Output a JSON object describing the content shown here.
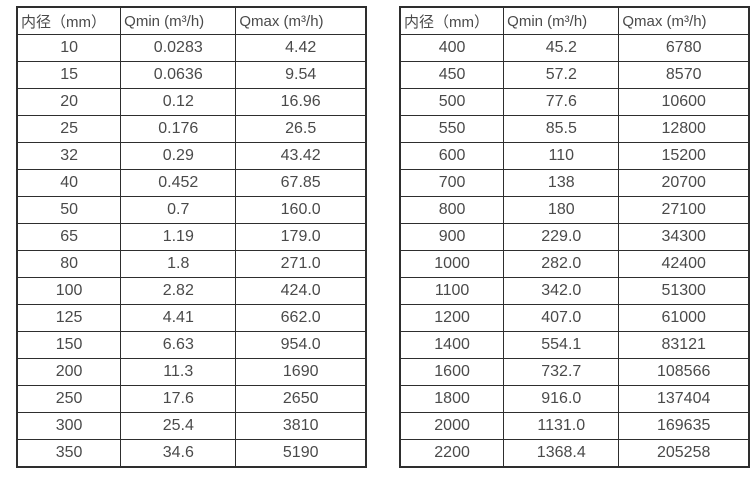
{
  "colors": {
    "border": "#2e2e2e",
    "text": "#4a4a4a",
    "background": "#ffffff"
  },
  "tables": [
    {
      "name": "flow-rate-table-small-diameters",
      "columns": [
        "内径（mm）",
        "Qmin (m³/h)",
        "Qmax (m³/h)"
      ],
      "rows": [
        [
          "10",
          "0.0283",
          "4.42"
        ],
        [
          "15",
          "0.0636",
          "9.54"
        ],
        [
          "20",
          "0.12",
          "16.96"
        ],
        [
          "25",
          "0.176",
          "26.5"
        ],
        [
          "32",
          "0.29",
          "43.42"
        ],
        [
          "40",
          "0.452",
          "67.85"
        ],
        [
          "50",
          "0.7",
          "160.0"
        ],
        [
          "65",
          "1.19",
          "179.0"
        ],
        [
          "80",
          "1.8",
          "271.0"
        ],
        [
          "100",
          "2.82",
          "424.0"
        ],
        [
          "125",
          "4.41",
          "662.0"
        ],
        [
          "150",
          "6.63",
          "954.0"
        ],
        [
          "200",
          "11.3",
          "1690"
        ],
        [
          "250",
          "17.6",
          "2650"
        ],
        [
          "300",
          "25.4",
          "3810"
        ],
        [
          "350",
          "34.6",
          "5190"
        ]
      ]
    },
    {
      "name": "flow-rate-table-large-diameters",
      "columns": [
        "内径（mm）",
        "Qmin (m³/h)",
        "Qmax (m³/h)"
      ],
      "rows": [
        [
          "400",
          "45.2",
          "6780"
        ],
        [
          "450",
          "57.2",
          "8570"
        ],
        [
          "500",
          "77.6",
          "10600"
        ],
        [
          "550",
          "85.5",
          "12800"
        ],
        [
          "600",
          "110",
          "15200"
        ],
        [
          "700",
          "138",
          "20700"
        ],
        [
          "800",
          "180",
          "27100"
        ],
        [
          "900",
          "229.0",
          "34300"
        ],
        [
          "1000",
          "282.0",
          "42400"
        ],
        [
          "1100",
          "342.0",
          "51300"
        ],
        [
          "1200",
          "407.0",
          "61000"
        ],
        [
          "1400",
          "554.1",
          "83121"
        ],
        [
          "1600",
          "732.7",
          "108566"
        ],
        [
          "1800",
          "916.0",
          "137404"
        ],
        [
          "2000",
          "1131.0",
          "169635"
        ],
        [
          "2200",
          "1368.4",
          "205258"
        ]
      ]
    }
  ]
}
